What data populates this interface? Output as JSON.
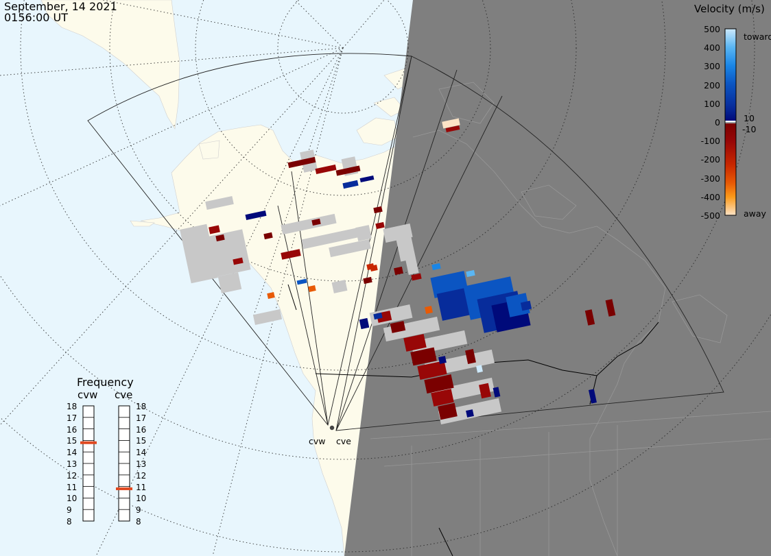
{
  "header": {
    "date": "September, 14 2021",
    "time": "0156:00 UT"
  },
  "colorbar": {
    "title": "Velocity (m/s)",
    "ticks": [
      "500",
      "400",
      "300",
      "200",
      "100",
      "0",
      "-100",
      "-200",
      "-300",
      "-400",
      "-500"
    ],
    "tick_values": [
      500,
      400,
      300,
      200,
      100,
      0,
      -100,
      -200,
      -300,
      -400,
      -500
    ],
    "toward_label": "toward",
    "away_label": "away",
    "threshold_pos": "10",
    "threshold_neg": "-10",
    "colors": {
      "toward_500": "#cde9fb",
      "toward_400": "#5ab6f3",
      "toward_300": "#1a86e6",
      "toward_200": "#0b55c2",
      "toward_100": "#072c9b",
      "toward_10": "#000a7a",
      "away_10": "#7a0000",
      "away_100": "#980707",
      "away_200": "#c82700",
      "away_300": "#e85a05",
      "away_400": "#fb9a1a",
      "away_500": "#fde3c6"
    }
  },
  "frequency": {
    "title": "Frequency",
    "radars": [
      "cvw",
      "cve"
    ],
    "scale": [
      "18",
      "17",
      "16",
      "15",
      "14",
      "13",
      "12",
      "11",
      "10",
      "9",
      "8"
    ],
    "scale_values": [
      18,
      17,
      16,
      15,
      14,
      13,
      12,
      11,
      10,
      9,
      8
    ],
    "cvw_mhz": 14.8,
    "cve_mhz": 10.8,
    "marker_color": "#e04a22"
  },
  "radar_sites": {
    "cvw": "cvw",
    "cve": "cve"
  },
  "map_colors": {
    "ocean": "#e8f6fd",
    "land": "#fdfbeb",
    "night": "#7f7f7f",
    "ground_scatter": "#c8c8c8"
  }
}
